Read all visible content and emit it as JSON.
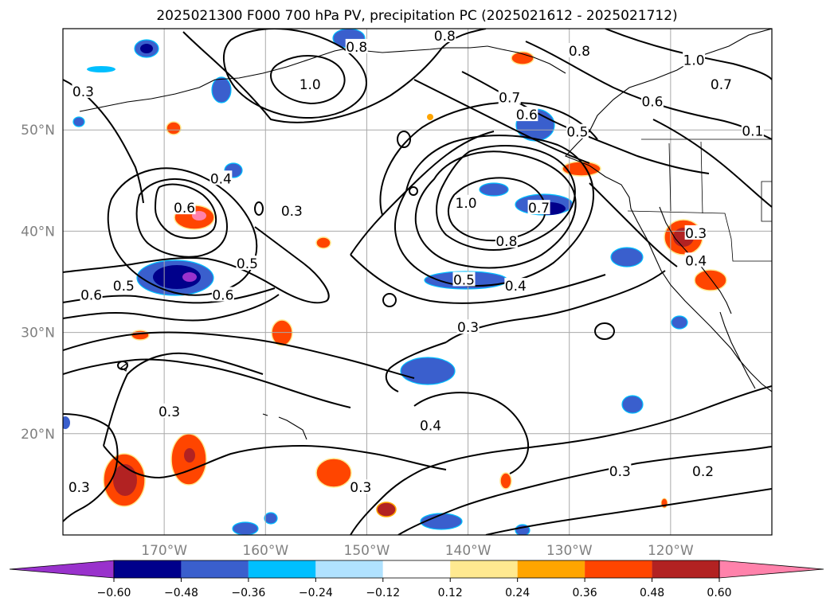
{
  "title": "2025021300 F000 700 hPa PV, precipitation PC (2025021612 - 2025021712)",
  "map": {
    "projection": "PlateCarree",
    "lon_range": [
      -180,
      -110
    ],
    "lat_range": [
      10,
      60
    ],
    "lat_ticks": [
      {
        "value": 50,
        "label": "50°N"
      },
      {
        "value": 40,
        "label": "40°N"
      },
      {
        "value": 30,
        "label": "30°N"
      },
      {
        "value": 20,
        "label": "20°N"
      }
    ],
    "lon_ticks": [
      {
        "value": -170,
        "label": "170°W"
      },
      {
        "value": -160,
        "label": "160°W"
      },
      {
        "value": -150,
        "label": "150°W"
      },
      {
        "value": -140,
        "label": "140°W"
      },
      {
        "value": -130,
        "label": "130°W"
      },
      {
        "value": -120,
        "label": "120°W"
      }
    ],
    "gridlines": true,
    "coastlines": true,
    "borders": true
  },
  "colorbar": {
    "orientation": "horizontal",
    "extend": "both",
    "labels": [
      "−0.60",
      "−0.48",
      "−0.36",
      "−0.24",
      "−0.12",
      "0.12",
      "0.24",
      "0.36",
      "0.48",
      "0.60"
    ],
    "colors": [
      "#9932cc",
      "#00008b",
      "#3a5fcd",
      "#00bfff",
      "#b0e2ff",
      "#ffffff",
      "#ffe990",
      "#ffa500",
      "#ff4500",
      "#b22222",
      "#ff82ab"
    ]
  },
  "contour_labels": [
    {
      "text": "0.8",
      "lon": -142.3,
      "lat": 59.3
    },
    {
      "text": "0.8",
      "lon": -151.0,
      "lat": 58.2
    },
    {
      "text": "0.8",
      "lon": -129.0,
      "lat": 57.8
    },
    {
      "text": "1.0",
      "lon": -117.7,
      "lat": 56.9
    },
    {
      "text": "0.7",
      "lon": -115.0,
      "lat": 54.5
    },
    {
      "text": "1.0",
      "lon": -155.6,
      "lat": 54.5
    },
    {
      "text": "0.3",
      "lon": -178.0,
      "lat": 53.8
    },
    {
      "text": "0.7",
      "lon": -135.9,
      "lat": 53.2
    },
    {
      "text": "0.6",
      "lon": -121.8,
      "lat": 52.8
    },
    {
      "text": "0.6",
      "lon": -134.2,
      "lat": 51.5
    },
    {
      "text": "0.5",
      "lon": -129.2,
      "lat": 49.8
    },
    {
      "text": "0.1",
      "lon": -111.9,
      "lat": 49.9
    },
    {
      "text": "0.4",
      "lon": -164.4,
      "lat": 45.2
    },
    {
      "text": "1.0",
      "lon": -140.2,
      "lat": 42.8
    },
    {
      "text": "0.6",
      "lon": -168.0,
      "lat": 42.3
    },
    {
      "text": "0.7",
      "lon": -133.0,
      "lat": 42.3
    },
    {
      "text": "0.3",
      "lon": -157.4,
      "lat": 42.0
    },
    {
      "text": "0.3",
      "lon": -117.5,
      "lat": 39.8
    },
    {
      "text": "0.8",
      "lon": -136.2,
      "lat": 39.0
    },
    {
      "text": "0.4",
      "lon": -117.5,
      "lat": 37.1
    },
    {
      "text": "0.5",
      "lon": -161.8,
      "lat": 36.8
    },
    {
      "text": "0.5",
      "lon": -140.4,
      "lat": 35.2
    },
    {
      "text": "0.4",
      "lon": -135.3,
      "lat": 34.6
    },
    {
      "text": "0.5",
      "lon": -174.0,
      "lat": 34.6
    },
    {
      "text": "0.6",
      "lon": -177.2,
      "lat": 33.7
    },
    {
      "text": "0.6",
      "lon": -164.2,
      "lat": 33.7
    },
    {
      "text": "0.3",
      "lon": -140.0,
      "lat": 30.5
    },
    {
      "text": "0.3",
      "lon": -169.5,
      "lat": 22.2
    },
    {
      "text": "0.4",
      "lon": -143.7,
      "lat": 20.8
    },
    {
      "text": "0.3",
      "lon": -125.0,
      "lat": 16.3
    },
    {
      "text": "0.2",
      "lon": -116.8,
      "lat": 16.3
    },
    {
      "text": "0.3",
      "lon": -178.4,
      "lat": 14.7
    },
    {
      "text": "0.3",
      "lon": -150.6,
      "lat": 14.7
    }
  ]
}
